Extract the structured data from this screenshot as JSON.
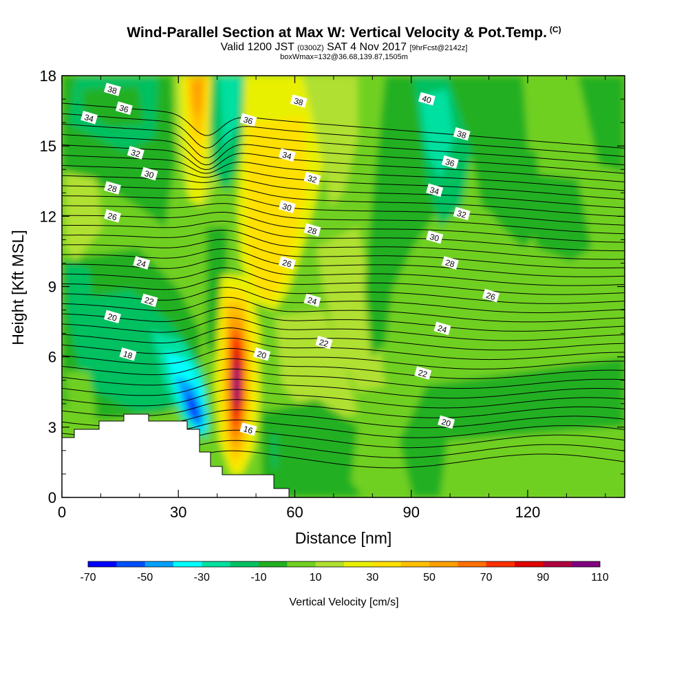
{
  "title": {
    "main": "Wind-Parallel Section at Max W: Vertical Velocity & Pot.Temp.",
    "copyright": "(C)",
    "valid_pre": "Valid 1200 JST",
    "valid_utc": "(0300Z)",
    "valid_date": "SAT 4 Nov 2017",
    "valid_fcst": "[9hrFcst@2142z]",
    "box": "boxWmax=132@36.68,139.87,1505m"
  },
  "chart_data": {
    "type": "heatmap",
    "xlabel": "Distance [nm]",
    "ylabel": "Height [Kft MSL]",
    "xlim": [
      0,
      145
    ],
    "ylim": [
      0,
      18
    ],
    "x_ticks": [
      "0",
      "30",
      "60",
      "90",
      "120"
    ],
    "y_ticks": [
      "0",
      "3",
      "6",
      "9",
      "12",
      "15",
      "18"
    ],
    "colorbar": {
      "label": "Vertical Velocity [cm/s]",
      "tick_labels": [
        "-70",
        "-50",
        "-30",
        "-10",
        "10",
        "30",
        "50",
        "70",
        "90",
        "110"
      ],
      "levels": [
        -70,
        -60,
        -50,
        -40,
        -30,
        -20,
        -10,
        0,
        10,
        20,
        30,
        40,
        50,
        60,
        70,
        80,
        90,
        100,
        110
      ],
      "colors": [
        "#0000ff",
        "#0050ff",
        "#00a0ff",
        "#00ffff",
        "#00e0a0",
        "#00c060",
        "#20b020",
        "#70d020",
        "#b0e030",
        "#e8f000",
        "#ffe000",
        "#ffc000",
        "#ffa000",
        "#ff7000",
        "#ff3000",
        "#e00000",
        "#b00040",
        "#800080"
      ]
    },
    "velocity_regions": [
      {
        "name": "updraft-core",
        "x_center": 45.5,
        "y_range": [
          2.5,
          9.0
        ],
        "max": 110
      },
      {
        "name": "downdraft-core",
        "x_center": 34,
        "y_range": [
          2.5,
          6.5
        ],
        "min": -70
      },
      {
        "name": "upper-updraft",
        "x_center": 35,
        "y_range": [
          13.0,
          18.0
        ],
        "max": 40
      },
      {
        "name": "broad-updraft",
        "x_center": 55,
        "y_range": [
          8.0,
          18.0
        ],
        "max": 30
      }
    ],
    "isentrope_labels": [
      {
        "text": "38",
        "x": 13,
        "y": 17.4
      },
      {
        "text": "36",
        "x": 16,
        "y": 16.6
      },
      {
        "text": "34",
        "x": 7,
        "y": 16.2
      },
      {
        "text": "32",
        "x": 19,
        "y": 14.7
      },
      {
        "text": "30",
        "x": 22.5,
        "y": 13.8
      },
      {
        "text": "28",
        "x": 13,
        "y": 13.2
      },
      {
        "text": "26",
        "x": 13,
        "y": 12.0
      },
      {
        "text": "24",
        "x": 20.5,
        "y": 10.0
      },
      {
        "text": "22",
        "x": 22.5,
        "y": 8.4
      },
      {
        "text": "20",
        "x": 13,
        "y": 7.7
      },
      {
        "text": "18",
        "x": 17,
        "y": 6.1
      },
      {
        "text": "36",
        "x": 48,
        "y": 16.1
      },
      {
        "text": "38",
        "x": 61,
        "y": 16.9
      },
      {
        "text": "34",
        "x": 58,
        "y": 14.6
      },
      {
        "text": "32",
        "x": 64.5,
        "y": 13.6
      },
      {
        "text": "30",
        "x": 58,
        "y": 12.4
      },
      {
        "text": "28",
        "x": 64.5,
        "y": 11.4
      },
      {
        "text": "26",
        "x": 58,
        "y": 10.0
      },
      {
        "text": "24",
        "x": 64.5,
        "y": 8.4
      },
      {
        "text": "22",
        "x": 67.5,
        "y": 6.6
      },
      {
        "text": "20",
        "x": 51.5,
        "y": 6.1
      },
      {
        "text": "16",
        "x": 48,
        "y": 2.9
      },
      {
        "text": "40",
        "x": 94,
        "y": 17.0
      },
      {
        "text": "38",
        "x": 103,
        "y": 15.5
      },
      {
        "text": "36",
        "x": 100,
        "y": 14.3
      },
      {
        "text": "34",
        "x": 96,
        "y": 13.1
      },
      {
        "text": "32",
        "x": 103,
        "y": 12.1
      },
      {
        "text": "30",
        "x": 96,
        "y": 11.1
      },
      {
        "text": "28",
        "x": 100,
        "y": 10.0
      },
      {
        "text": "26",
        "x": 110.5,
        "y": 8.6
      },
      {
        "text": "24",
        "x": 98,
        "y": 7.2
      },
      {
        "text": "22",
        "x": 93,
        "y": 5.3
      },
      {
        "text": "20",
        "x": 99,
        "y": 3.2
      }
    ]
  }
}
